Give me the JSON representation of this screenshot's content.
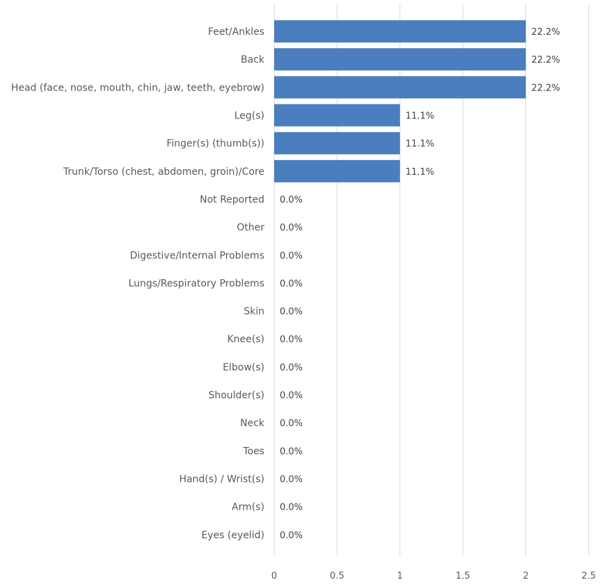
{
  "chart_data": {
    "type": "bar",
    "orientation": "horizontal",
    "categories": [
      "Feet/Ankles",
      "Back",
      "Head (face, nose, mouth, chin, jaw, teeth, eyebrow)",
      "Leg(s)",
      "Finger(s) (thumb(s))",
      "Trunk/Torso (chest, abdomen, groin)/Core",
      "Not Reported",
      "Other",
      "Digestive/Internal Problems",
      "Lungs/Respiratory Problems",
      "Skin",
      "Knee(s)",
      "Elbow(s)",
      "Shoulder(s)",
      "Neck",
      "Toes",
      "Hand(s) / Wrist(s)",
      "Arm(s)",
      "Eyes (eyelid)"
    ],
    "values": [
      2,
      2,
      2,
      1,
      1,
      1,
      0,
      0,
      0,
      0,
      0,
      0,
      0,
      0,
      0,
      0,
      0,
      0,
      0
    ],
    "data_labels": [
      "22.2%",
      "22.2%",
      "22.2%",
      "11.1%",
      "11.1%",
      "11.1%",
      "0.0%",
      "0.0%",
      "0.0%",
      "0.0%",
      "0.0%",
      "0.0%",
      "0.0%",
      "0.0%",
      "0.0%",
      "0.0%",
      "0.0%",
      "0.0%",
      "0.0%"
    ],
    "x_ticks": [
      "0",
      "0.5",
      "1",
      "1.5",
      "2",
      "2.5"
    ],
    "xlim": [
      0,
      2.5
    ],
    "title": "",
    "xlabel": "",
    "ylabel": "",
    "grid": "vertical",
    "legend": "none",
    "bar_color": "#4a7ebf",
    "grid_color": "#d9d9d9"
  }
}
